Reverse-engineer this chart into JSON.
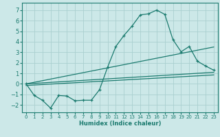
{
  "xlabel": "Humidex (Indice chaleur)",
  "bg_color": "#cce8e8",
  "grid_color": "#aacfcf",
  "line_color": "#1a7a6e",
  "xlim": [
    -0.5,
    23.5
  ],
  "ylim": [
    -2.7,
    7.7
  ],
  "xticks": [
    0,
    1,
    2,
    3,
    4,
    5,
    6,
    7,
    8,
    9,
    10,
    11,
    12,
    13,
    14,
    15,
    16,
    17,
    18,
    19,
    20,
    21,
    22,
    23
  ],
  "yticks": [
    -2,
    -1,
    0,
    1,
    2,
    3,
    4,
    5,
    6,
    7
  ],
  "curve_x": [
    0,
    1,
    2,
    3,
    4,
    5,
    6,
    7,
    8,
    9,
    10,
    11,
    12,
    13,
    14,
    15,
    16,
    17,
    18,
    19,
    20,
    21,
    22,
    23
  ],
  "curve_y": [
    0,
    -1.1,
    -1.55,
    -2.3,
    -1.1,
    -1.15,
    -1.6,
    -1.55,
    -1.55,
    -0.55,
    1.6,
    3.55,
    4.6,
    5.5,
    6.55,
    6.65,
    7.0,
    6.6,
    4.2,
    3.05,
    3.55,
    2.15,
    1.7,
    1.3
  ],
  "line1_x": [
    0,
    23
  ],
  "line1_y": [
    0,
    3.5
  ],
  "line2_x": [
    0,
    23
  ],
  "line2_y": [
    0,
    1.1
  ],
  "line3_x": [
    0,
    23
  ],
  "line3_y": [
    -0.15,
    0.85
  ]
}
